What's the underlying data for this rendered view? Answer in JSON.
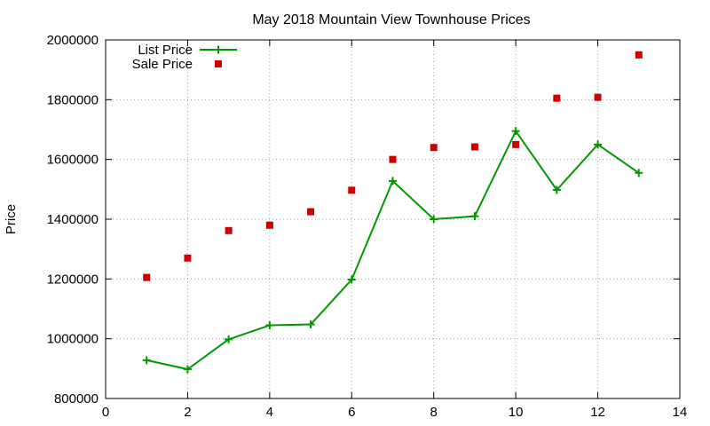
{
  "chart_data": {
    "type": "line",
    "title": "May 2018 Mountain View Townhouse Prices",
    "xlabel": "",
    "ylabel": "Price",
    "xlim": [
      0,
      14
    ],
    "ylim": [
      800000,
      2000000
    ],
    "xticks": [
      0,
      2,
      4,
      6,
      8,
      10,
      12,
      14
    ],
    "yticks": [
      800000,
      1000000,
      1200000,
      1400000,
      1600000,
      1800000,
      2000000
    ],
    "grid": true,
    "legend_position": "top-left",
    "series": [
      {
        "name": "List Price",
        "style": "line-with-plus-markers",
        "color": "#009900",
        "x": [
          1,
          2,
          3,
          4,
          5,
          6,
          7,
          8,
          9,
          10,
          11,
          12,
          13
        ],
        "values": [
          928000,
          898000,
          998000,
          1045000,
          1048000,
          1198000,
          1528000,
          1400000,
          1410000,
          1695000,
          1498000,
          1650000,
          1555000
        ]
      },
      {
        "name": "Sale Price",
        "style": "square-markers",
        "color": "#cc0000",
        "x": [
          1,
          2,
          3,
          4,
          5,
          6,
          7,
          8,
          9,
          10,
          11,
          12,
          13
        ],
        "values": [
          1205000,
          1270000,
          1362000,
          1380000,
          1425000,
          1497000,
          1600000,
          1640000,
          1642000,
          1650000,
          1805000,
          1808000,
          1950000
        ]
      }
    ]
  }
}
